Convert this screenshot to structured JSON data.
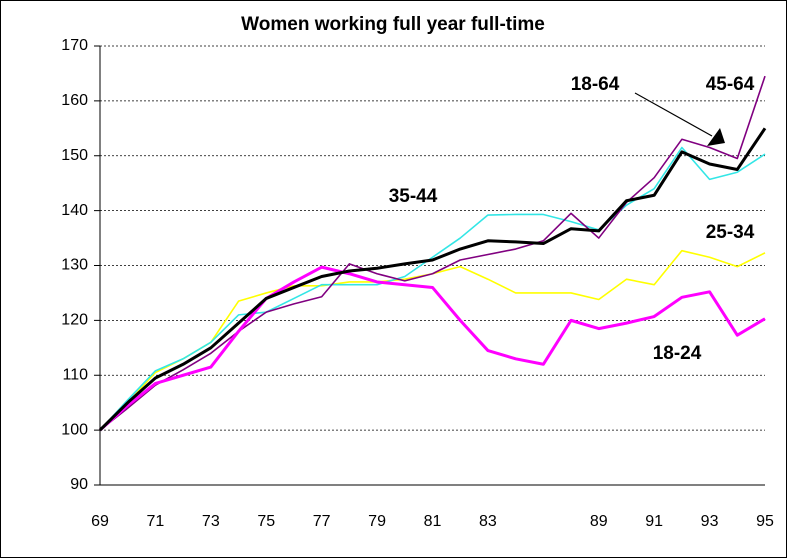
{
  "chart_data": {
    "type": "line",
    "title": "Women working full year full-time",
    "categories": [
      "69",
      null,
      "71",
      null,
      "73",
      null,
      "75",
      null,
      "77",
      null,
      "79",
      null,
      "81",
      null,
      "83",
      null,
      null,
      null,
      "89",
      null,
      "91",
      null,
      "93",
      null,
      "95"
    ],
    "series": [
      {
        "name": "25-34",
        "color": "#ffff00",
        "values": [
          100,
          105,
          110.5,
          113,
          116,
          123.5,
          125,
          126.3,
          126.3,
          127,
          127,
          127.5,
          128.5,
          129.8,
          127.5,
          125,
          125,
          125,
          123.8,
          127.5,
          126.5,
          132.7,
          131.5,
          129.8,
          132.3
        ]
      },
      {
        "name": "35-44",
        "color": "#33e6e6",
        "values": [
          100,
          105.5,
          110.8,
          113,
          116,
          121,
          121.5,
          124,
          126.5,
          126.5,
          126.5,
          128,
          131.5,
          135,
          139.2,
          139.3,
          139.3,
          138,
          136.5,
          141,
          144,
          151.5,
          145.7,
          147,
          150.3
        ]
      },
      {
        "name": "45-64",
        "color": "#800080",
        "values": [
          100,
          104,
          108.2,
          111,
          114,
          118,
          121.5,
          123,
          124.3,
          130.3,
          128.5,
          127.2,
          128.5,
          131,
          132,
          133,
          134.5,
          139.5,
          135,
          141.5,
          146,
          153,
          151.5,
          149.5,
          164.5
        ]
      },
      {
        "name": "18-24",
        "color": "#ff00ff",
        "values": [
          100,
          104.5,
          108.5,
          110,
          111.5,
          118,
          124,
          127,
          129.7,
          128.5,
          127,
          126.5,
          126,
          120,
          114.5,
          113,
          112,
          120,
          118.5,
          119.5,
          120.7,
          124.2,
          125.2,
          117.3,
          120.3
        ]
      },
      {
        "name": "18-64",
        "color": "#000000",
        "values": [
          100,
          105,
          109.5,
          112,
          115,
          119.5,
          124,
          126,
          128,
          129,
          129.5,
          130.3,
          131,
          133,
          134.5,
          134.3,
          134,
          136.7,
          136.3,
          141.8,
          142.8,
          150.7,
          148.5,
          147.5,
          155
        ]
      }
    ],
    "ylim": [
      90,
      170
    ],
    "yticks": [
      90,
      100,
      110,
      120,
      130,
      140,
      150,
      160,
      170
    ],
    "grid": true
  }
}
